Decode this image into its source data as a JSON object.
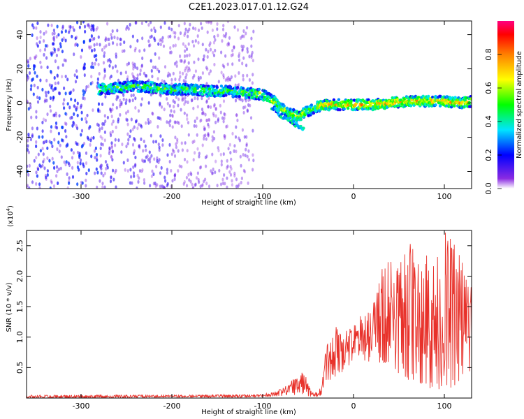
{
  "page": {
    "title": "C2E1.2023.017.01.12.G24"
  },
  "chart_data": [
    {
      "type": "heatmap",
      "title": "C2E1.2023.017.01.12.G24",
      "xlabel": "Height of straight line (km)",
      "ylabel": "Frequency (Hz)",
      "xlim": [
        -360,
        130
      ],
      "ylim": [
        -50,
        48
      ],
      "xticks": [
        -300,
        -200,
        -100,
        0,
        100
      ],
      "xtick_labels": [
        "-300",
        "-200",
        "-100",
        "0",
        "100"
      ],
      "yticks": [
        -40,
        -20,
        0,
        20,
        40
      ],
      "ytick_labels": [
        "-40",
        "-20",
        "0",
        "20",
        "40"
      ],
      "ridge": {
        "x": [
          -280,
          -260,
          -240,
          -220,
          -200,
          -180,
          -160,
          -140,
          -120,
          -100,
          -90,
          -80,
          -70,
          -60,
          -55,
          -50,
          -40,
          -30,
          -20,
          -10,
          0,
          10,
          20,
          40,
          60,
          80,
          100,
          120,
          130
        ],
        "y": [
          8,
          9,
          10,
          9,
          8,
          8,
          7,
          7,
          6,
          5,
          2,
          -3,
          -6,
          -8,
          -6,
          -5,
          -2,
          -1,
          -1,
          -1,
          -1,
          -1,
          -1,
          0,
          1,
          1,
          1,
          0,
          1
        ]
      },
      "side_branch": {
        "x": [
          -90,
          -80,
          -70,
          -60,
          -55
        ],
        "y": [
          -2,
          -7,
          -10,
          -14,
          -16
        ]
      },
      "noise_region_x": [
        -360,
        -110
      ],
      "colorbar": {
        "label": "Normalized spectral amplitude",
        "range": [
          0,
          1
        ],
        "ticks": [
          0.0,
          0.2,
          0.4,
          0.6,
          0.8
        ],
        "tick_labels": [
          "0.0",
          "0.2",
          "0.4",
          "0.6",
          "0.8"
        ],
        "colormap": "rainbow"
      },
      "grid": false
    },
    {
      "type": "line",
      "xlabel": "Height of straight line (km)",
      "ylabel": "SNR (10 * v/v)",
      "scale_label": "(x10",
      "scale_exponent": "4",
      "scale_suffix": ")",
      "xlim": [
        -360,
        130
      ],
      "ylim": [
        0,
        2.75
      ],
      "xticks": [
        -300,
        -200,
        -100,
        0,
        100
      ],
      "xtick_labels": [
        "-300",
        "-200",
        "-100",
        "0",
        "100"
      ],
      "yticks": [
        0.5,
        1.0,
        1.5,
        2.0,
        2.5
      ],
      "ytick_labels": [
        "0.5",
        "1.0",
        "1.5",
        "2.0",
        "2.5"
      ],
      "series": [
        {
          "color": "#e8312a",
          "envelope": {
            "x": [
              -360,
              -300,
              -200,
              -120,
              -100,
              -80,
              -70,
              -65,
              -60,
              -55,
              -50,
              -45,
              -40,
              -35,
              -30,
              -25,
              -20,
              -10,
              0,
              10,
              20,
              30,
              40,
              50,
              60,
              70,
              80,
              90,
              100,
              110,
              120,
              130
            ],
            "low": [
              0.0,
              0.0,
              0.01,
              0.01,
              0.02,
              0.03,
              0.05,
              0.05,
              0.05,
              0.05,
              0.03,
              0.02,
              0.02,
              0.05,
              0.3,
              0.3,
              0.35,
              0.45,
              0.6,
              0.6,
              0.6,
              0.55,
              0.6,
              0.4,
              0.3,
              0.3,
              0.15,
              0.15,
              0.1,
              0.2,
              0.25,
              0.35
            ],
            "high": [
              0.05,
              0.05,
              0.05,
              0.06,
              0.06,
              0.15,
              0.25,
              0.35,
              0.38,
              0.45,
              0.25,
              0.1,
              0.1,
              0.2,
              0.9,
              0.95,
              1.2,
              1.2,
              1.2,
              1.4,
              1.5,
              2.1,
              2.4,
              2.3,
              2.6,
              2.4,
              2.5,
              2.2,
              2.75,
              2.6,
              2.3,
              2.0
            ]
          }
        }
      ],
      "grid": false
    }
  ]
}
